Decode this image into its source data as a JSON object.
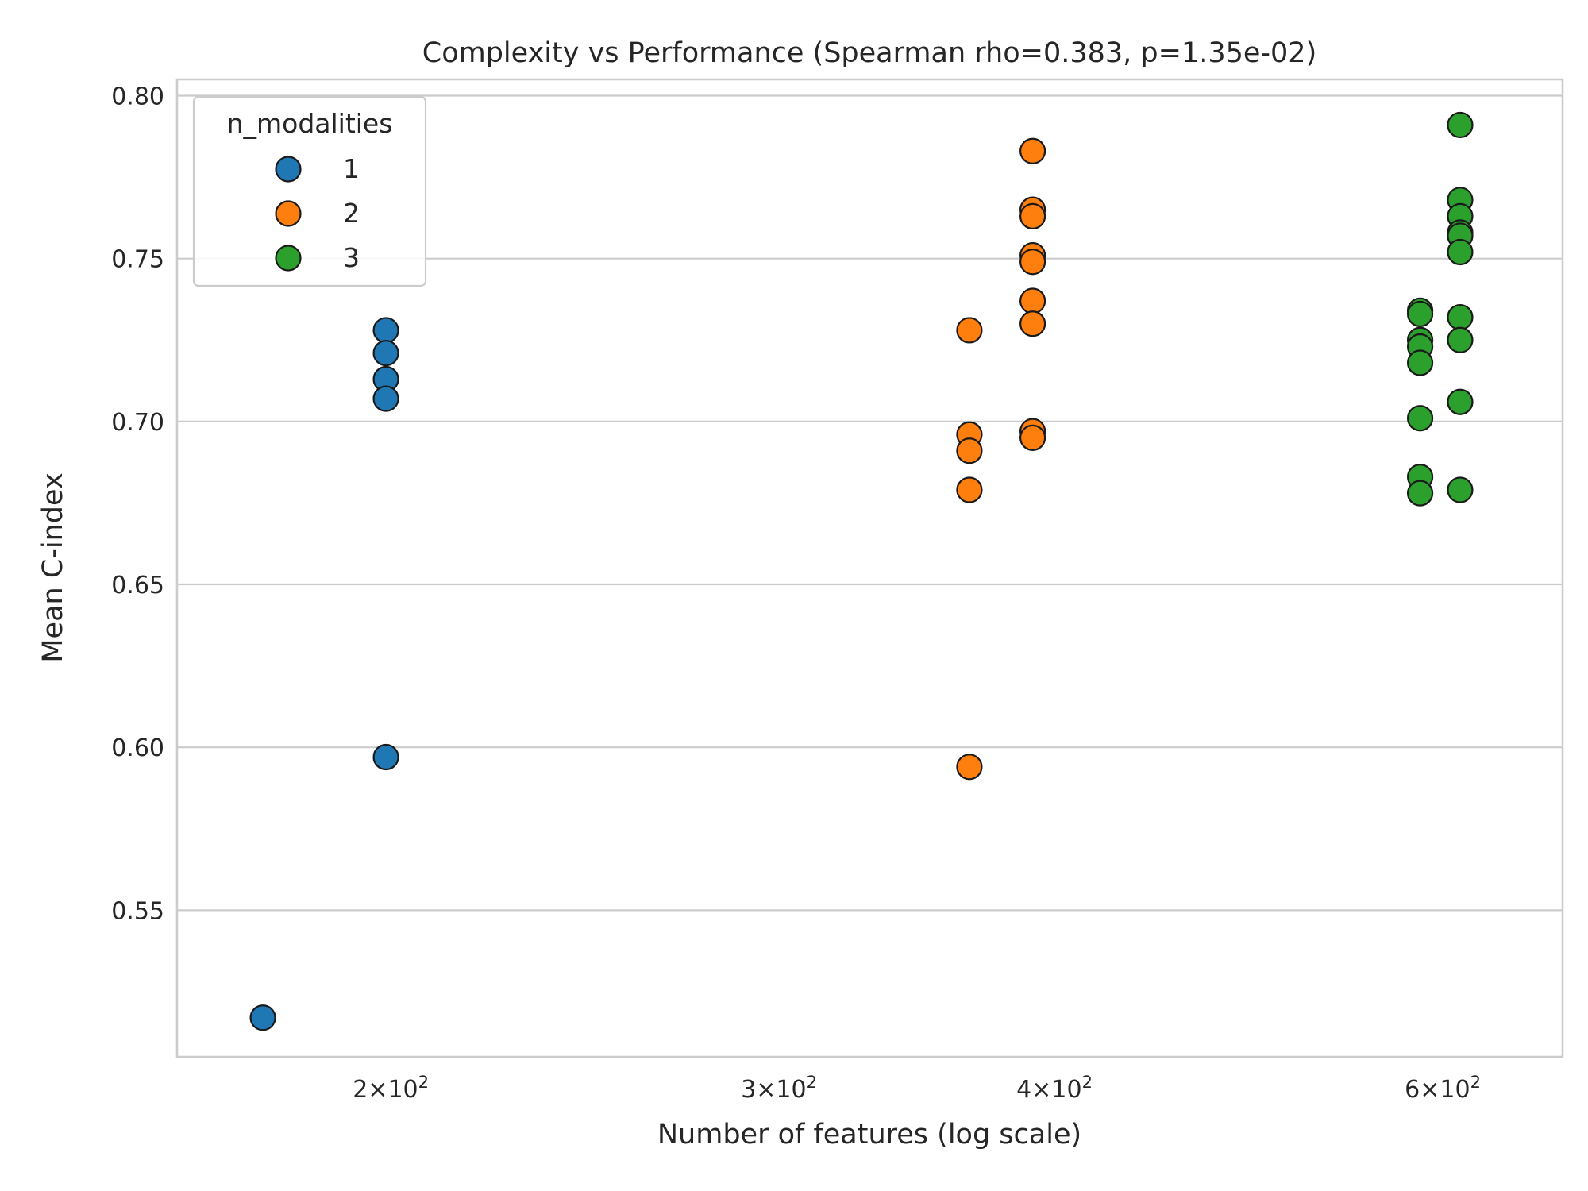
{
  "chart_data": {
    "type": "scatter",
    "title": "Complexity vs Performance (Spearman rho=0.383, p=1.35e-02)",
    "xlabel": "Number of features (log scale)",
    "ylabel": "Mean C-index",
    "x_scale": "log",
    "xlim": [
      160,
      680
    ],
    "ylim": [
      0.505,
      0.805
    ],
    "x_ticks": [
      200,
      300,
      400,
      600
    ],
    "x_tick_labels": [
      {
        "base": "2",
        "exp": "2"
      },
      {
        "base": "3",
        "exp": "2"
      },
      {
        "base": "4",
        "exp": "2"
      },
      {
        "base": "6",
        "exp": "2"
      }
    ],
    "y_ticks": [
      0.55,
      0.6,
      0.65,
      0.7,
      0.75,
      0.8
    ],
    "y_tick_labels": [
      "0.55",
      "0.60",
      "0.65",
      "0.70",
      "0.75",
      "0.80"
    ],
    "grid": "horizontal",
    "legend": {
      "title": "n_modalities",
      "placement": "top-left",
      "entries": [
        "1",
        "2",
        "3"
      ]
    },
    "series": [
      {
        "name": "1",
        "color": "#1f77b4",
        "points": [
          {
            "x": 175,
            "y": 0.517
          },
          {
            "x": 199,
            "y": 0.728
          },
          {
            "x": 199,
            "y": 0.721
          },
          {
            "x": 199,
            "y": 0.713
          },
          {
            "x": 199,
            "y": 0.707
          },
          {
            "x": 199,
            "y": 0.597
          }
        ]
      },
      {
        "name": "2",
        "color": "#ff7f0e",
        "points": [
          {
            "x": 366,
            "y": 0.728
          },
          {
            "x": 366,
            "y": 0.696
          },
          {
            "x": 366,
            "y": 0.691
          },
          {
            "x": 366,
            "y": 0.679
          },
          {
            "x": 366,
            "y": 0.594
          },
          {
            "x": 391,
            "y": 0.783
          },
          {
            "x": 391,
            "y": 0.765
          },
          {
            "x": 391,
            "y": 0.763
          },
          {
            "x": 391,
            "y": 0.751
          },
          {
            "x": 391,
            "y": 0.749
          },
          {
            "x": 391,
            "y": 0.737
          },
          {
            "x": 391,
            "y": 0.73
          },
          {
            "x": 391,
            "y": 0.697
          },
          {
            "x": 391,
            "y": 0.695
          }
        ]
      },
      {
        "name": "3",
        "color": "#2ca02c",
        "points": [
          {
            "x": 586,
            "y": 0.734
          },
          {
            "x": 586,
            "y": 0.733
          },
          {
            "x": 586,
            "y": 0.725
          },
          {
            "x": 586,
            "y": 0.723
          },
          {
            "x": 586,
            "y": 0.718
          },
          {
            "x": 586,
            "y": 0.701
          },
          {
            "x": 586,
            "y": 0.683
          },
          {
            "x": 586,
            "y": 0.678
          },
          {
            "x": 611,
            "y": 0.791
          },
          {
            "x": 611,
            "y": 0.768
          },
          {
            "x": 611,
            "y": 0.763
          },
          {
            "x": 611,
            "y": 0.758
          },
          {
            "x": 611,
            "y": 0.757
          },
          {
            "x": 611,
            "y": 0.752
          },
          {
            "x": 611,
            "y": 0.732
          },
          {
            "x": 611,
            "y": 0.725
          },
          {
            "x": 611,
            "y": 0.706
          },
          {
            "x": 611,
            "y": 0.679
          }
        ]
      }
    ]
  }
}
